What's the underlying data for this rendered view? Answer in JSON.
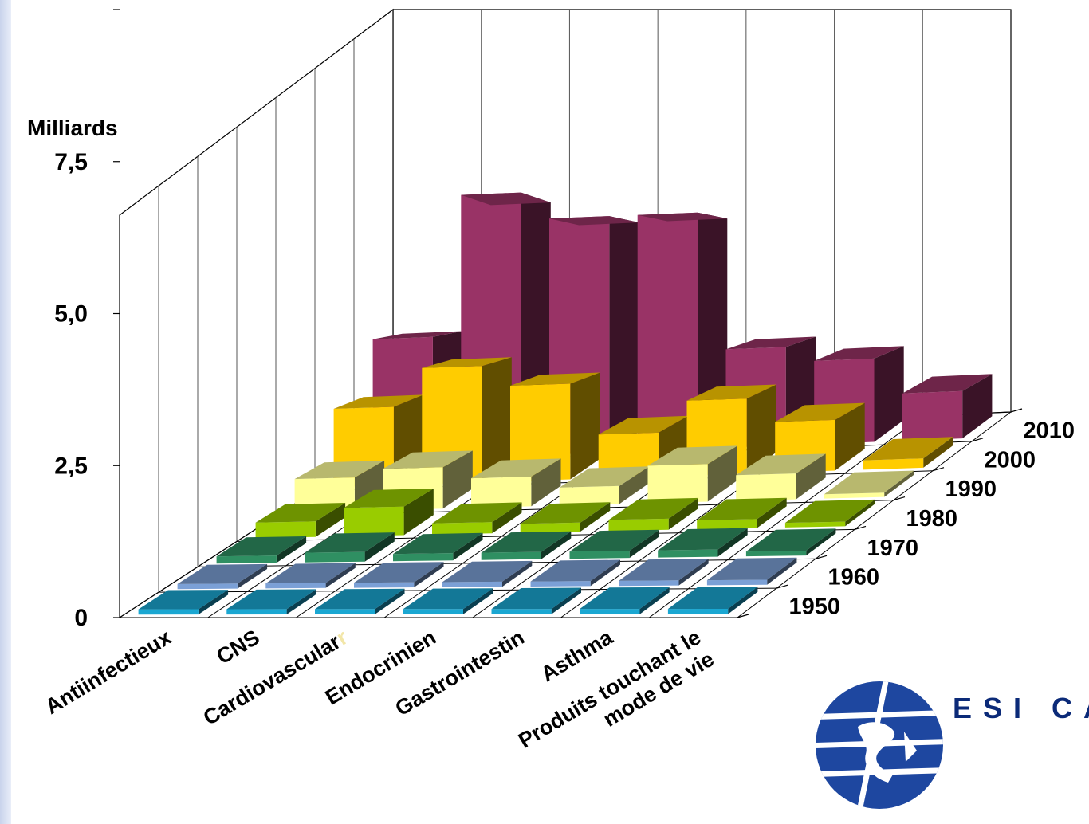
{
  "chart_data": {
    "type": "bar",
    "ylabel": "Milliards",
    "y_ticks": [
      "0",
      "2,5",
      "5,0",
      "7,5"
    ],
    "ylim": [
      0,
      10
    ],
    "categories": [
      "Antiinfectieux",
      "CNS",
      "Cardiovasculaire",
      "Endocrinien",
      "Gastrointestin",
      "Asthma",
      "Produits touchant le mode de vie"
    ],
    "category_labels": [
      [
        "Antiinfectieux"
      ],
      [
        "CNS"
      ],
      [
        "Cardiovascular",
        "r"
      ],
      [
        "Endocrinien"
      ],
      [
        "Gastrointestin"
      ],
      [
        "Asthma"
      ],
      [
        "Produits touchant le",
        "mode de vie"
      ]
    ],
    "series": [
      {
        "name": "1950",
        "color": "#1aa7d2",
        "values": [
          0.05,
          0.05,
          0.05,
          0.05,
          0.05,
          0.05,
          0.05
        ]
      },
      {
        "name": "1960",
        "color": "#7ba0d6",
        "values": [
          0.05,
          0.05,
          0.05,
          0.05,
          0.05,
          0.05,
          0.05
        ]
      },
      {
        "name": "1970",
        "color": "#2f8f62",
        "values": [
          0.1,
          0.15,
          0.1,
          0.1,
          0.1,
          0.1,
          0.05
        ]
      },
      {
        "name": "1980",
        "color": "#99cc00",
        "values": [
          0.3,
          0.6,
          0.2,
          0.15,
          0.2,
          0.15,
          0.05
        ]
      },
      {
        "name": "1990",
        "color": "#ffff99",
        "values": [
          0.8,
          1.0,
          0.7,
          0.4,
          0.9,
          0.6,
          0.05
        ]
      },
      {
        "name": "2000",
        "color": "#ffcc00",
        "values": [
          2.2,
          3.3,
          2.7,
          1.2,
          2.1,
          1.4,
          0.2
        ]
      },
      {
        "name": "2010",
        "color": "#993366",
        "values": [
          4.0,
          8.7,
          7.8,
          7.8,
          3.2,
          2.7,
          1.5
        ]
      }
    ],
    "grid": true,
    "view": "3d-perspective"
  },
  "brand": {
    "logo_text": "ESI CA"
  }
}
